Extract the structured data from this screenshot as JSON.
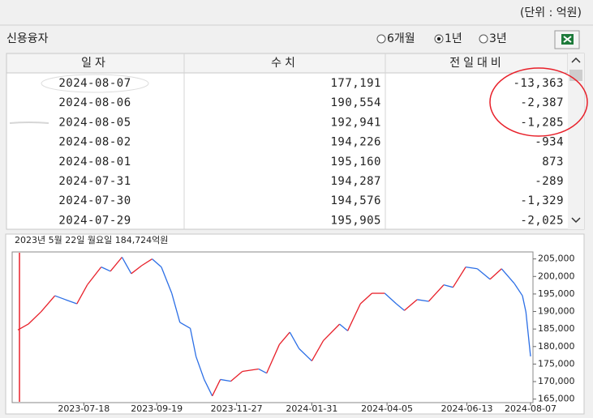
{
  "unit": "(단위 : 억원)",
  "title": "신용융자",
  "period_options": [
    "6개월",
    "1년",
    "3년"
  ],
  "selected_period": "1년",
  "table": {
    "headers": [
      "일자",
      "수치",
      "전일대비"
    ],
    "rows": [
      [
        "2024-08-07",
        "177,191",
        "-13,363"
      ],
      [
        "2024-08-06",
        "190,554",
        "-2,387"
      ],
      [
        "2024-08-05",
        "192,941",
        "-1,285"
      ],
      [
        "2024-08-02",
        "194,226",
        "-934"
      ],
      [
        "2024-08-01",
        "195,160",
        "873"
      ],
      [
        "2024-07-31",
        "194,287",
        "-289"
      ],
      [
        "2024-07-30",
        "194,576",
        "-1,329"
      ],
      [
        "2024-07-29",
        "195,905",
        "-2,025"
      ]
    ]
  },
  "chart_data": {
    "type": "line",
    "subtitle": "2023년 5월 22일 월요일  184,724억원",
    "x": [
      "2023-05-22",
      "2023-05-31",
      "2023-06-11",
      "2023-06-23",
      "2023-07-02",
      "2023-07-12",
      "2023-07-21",
      "2023-08-02",
      "2023-08-10",
      "2023-08-20",
      "2023-08-28",
      "2023-09-06",
      "2023-09-15",
      "2023-09-23",
      "2023-10-02",
      "2023-10-09",
      "2023-10-18",
      "2023-10-23",
      "2023-10-30",
      "2023-11-06",
      "2023-11-13",
      "2023-11-22",
      "2023-12-02",
      "2023-12-16",
      "2023-12-23",
      "2024-01-03",
      "2024-01-12",
      "2024-01-20",
      "2024-01-31",
      "2024-02-10",
      "2024-02-24",
      "2024-03-02",
      "2024-03-13",
      "2024-03-23",
      "2024-04-03",
      "2024-04-13",
      "2024-04-20",
      "2024-05-01",
      "2024-05-11",
      "2024-05-24",
      "2024-06-01",
      "2024-06-12",
      "2024-06-22",
      "2024-07-03",
      "2024-07-13",
      "2024-07-24",
      "2024-07-31",
      "2024-08-03",
      "2024-08-07"
    ],
    "values": [
      184724,
      186400,
      189900,
      194500,
      193400,
      192200,
      197600,
      202700,
      201500,
      205500,
      200800,
      203100,
      205000,
      202700,
      195200,
      186900,
      185200,
      177100,
      170600,
      165900,
      170600,
      170100,
      172900,
      173600,
      172400,
      180600,
      184100,
      179400,
      175900,
      181700,
      186400,
      184500,
      192200,
      195200,
      195200,
      192200,
      190300,
      193400,
      192900,
      197600,
      196900,
      202700,
      202200,
      199200,
      202200,
      198000,
      194500,
      189900,
      177191
    ],
    "up_color": "#e8202a",
    "down_color": "#2c6fe6",
    "xlim": [
      "2023-05-22",
      "2024-08-07"
    ],
    "xticks": [
      "2023-07-18",
      "2023-09-19",
      "2023-11-27",
      "2024-01-31",
      "2024-04-05",
      "2024-06-13",
      "2024-08-07"
    ],
    "ylim": [
      164000,
      207000
    ],
    "yticks": [
      {
        "value": 165000,
        "label": "165,000"
      },
      {
        "value": 170000,
        "label": "170,000"
      },
      {
        "value": 175000,
        "label": "175,000"
      },
      {
        "value": 180000,
        "label": "180,000"
      },
      {
        "value": 185000,
        "label": "185,000"
      },
      {
        "value": 190000,
        "label": "190,000"
      },
      {
        "value": 195000,
        "label": "195,000"
      },
      {
        "value": 200000,
        "label": "200,000"
      },
      {
        "value": 205000,
        "label": "205,000"
      }
    ]
  }
}
